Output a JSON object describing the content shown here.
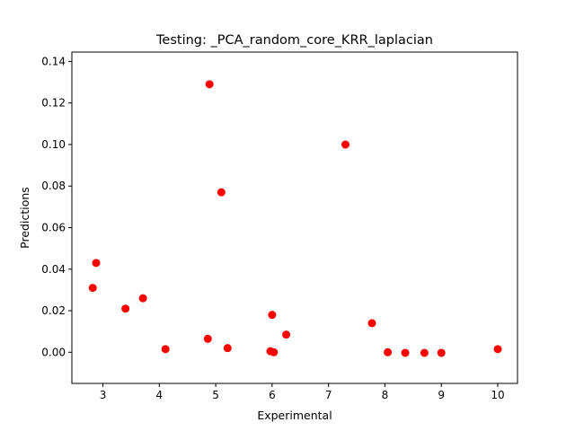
{
  "chart_data": {
    "type": "scatter",
    "title": "Testing: _PCA_random_core_KRR_laplacian",
    "xlabel": "Experimental",
    "ylabel": "Predictions",
    "xlim": [
      2.45,
      10.35
    ],
    "ylim": [
      -0.015,
      0.1445
    ],
    "xticks": [
      3,
      4,
      5,
      6,
      7,
      8,
      9,
      10
    ],
    "xtick_labels": [
      "3",
      "4",
      "5",
      "6",
      "7",
      "8",
      "9",
      "10"
    ],
    "yticks": [
      0.0,
      0.02,
      0.04,
      0.06,
      0.08,
      0.1,
      0.12,
      0.14
    ],
    "ytick_labels": [
      "0.00",
      "0.02",
      "0.04",
      "0.06",
      "0.08",
      "0.10",
      "0.12",
      "0.14"
    ],
    "grid": false,
    "marker_color": "#ff0000",
    "points": [
      {
        "x": 2.82,
        "y": 0.031
      },
      {
        "x": 2.88,
        "y": 0.043
      },
      {
        "x": 3.4,
        "y": 0.021
      },
      {
        "x": 3.71,
        "y": 0.026
      },
      {
        "x": 4.11,
        "y": 0.0015
      },
      {
        "x": 4.86,
        "y": 0.0065
      },
      {
        "x": 4.89,
        "y": 0.129
      },
      {
        "x": 5.1,
        "y": 0.077
      },
      {
        "x": 5.21,
        "y": 0.002
      },
      {
        "x": 5.97,
        "y": 0.0005
      },
      {
        "x": 6.0,
        "y": 0.018
      },
      {
        "x": 6.03,
        "y": 0.0
      },
      {
        "x": 6.25,
        "y": 0.0085
      },
      {
        "x": 7.3,
        "y": 0.1
      },
      {
        "x": 7.77,
        "y": 0.014
      },
      {
        "x": 8.05,
        "y": 0.0
      },
      {
        "x": 8.36,
        "y": -0.0003
      },
      {
        "x": 8.7,
        "y": -0.0003
      },
      {
        "x": 9.0,
        "y": -0.0003
      },
      {
        "x": 10.0,
        "y": 0.0015
      }
    ]
  }
}
